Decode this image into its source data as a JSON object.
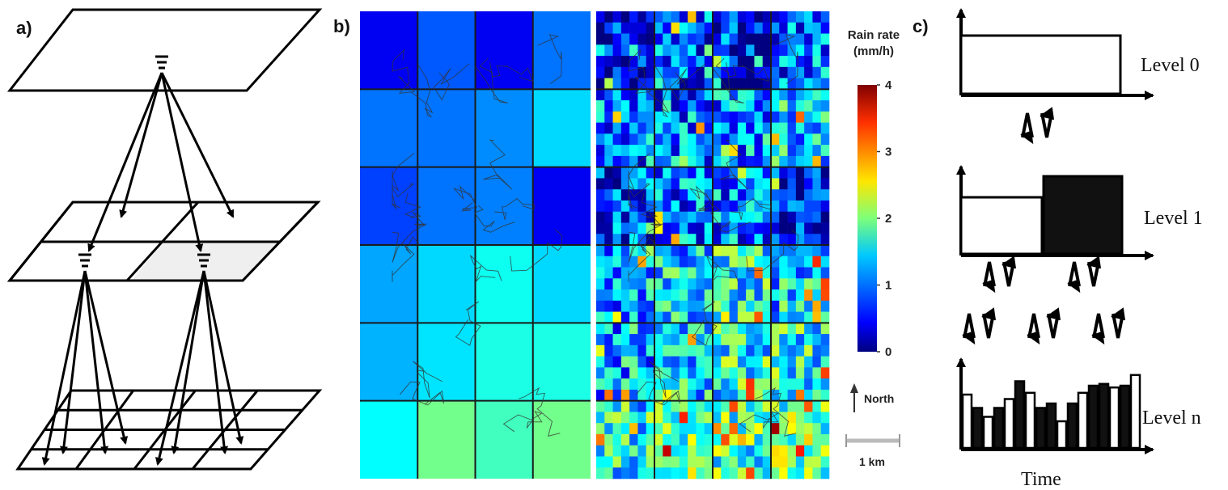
{
  "panels": {
    "a": {
      "label": "a)"
    },
    "b": {
      "label": "b)"
    },
    "c": {
      "label": "c)"
    }
  },
  "colorbar": {
    "title_line1": "Rain rate",
    "title_line2": "(mm/h)",
    "ticks": [
      "4",
      "3",
      "2",
      "1",
      "0"
    ],
    "colormap": "jet",
    "range": [
      0,
      4
    ]
  },
  "map": {
    "north_label": "North",
    "scale_label": "1 km",
    "coarse_grid": {
      "cols": 4,
      "rows": 6,
      "values": [
        [
          0.45,
          0.85,
          0.45,
          0.95
        ],
        [
          0.95,
          0.95,
          1.05,
          1.35
        ],
        [
          0.75,
          0.95,
          1.0,
          0.45
        ],
        [
          1.15,
          1.35,
          1.55,
          1.35
        ],
        [
          1.2,
          1.4,
          1.6,
          1.6
        ],
        [
          1.5,
          1.95,
          1.75,
          1.95
        ]
      ]
    },
    "fine_grid": {
      "cols": 28,
      "rows": 42
    }
  },
  "diagram_c": {
    "levels": [
      "Level 0",
      "Level 1",
      "Level n"
    ],
    "x_axis_label": "Time",
    "level_n_bars": [
      {
        "h": 0.6,
        "fill": "white"
      },
      {
        "h": 0.45,
        "fill": "black"
      },
      {
        "h": 0.35,
        "fill": "white"
      },
      {
        "h": 0.45,
        "fill": "black"
      },
      {
        "h": 0.55,
        "fill": "white"
      },
      {
        "h": 0.75,
        "fill": "black"
      },
      {
        "h": 0.62,
        "fill": "white"
      },
      {
        "h": 0.45,
        "fill": "black"
      },
      {
        "h": 0.5,
        "fill": "black"
      },
      {
        "h": 0.3,
        "fill": "white"
      },
      {
        "h": 0.5,
        "fill": "black"
      },
      {
        "h": 0.62,
        "fill": "white"
      },
      {
        "h": 0.7,
        "fill": "black"
      },
      {
        "h": 0.72,
        "fill": "black"
      },
      {
        "h": 0.68,
        "fill": "white"
      },
      {
        "h": 0.7,
        "fill": "black"
      },
      {
        "h": 0.82,
        "fill": "white"
      }
    ]
  }
}
